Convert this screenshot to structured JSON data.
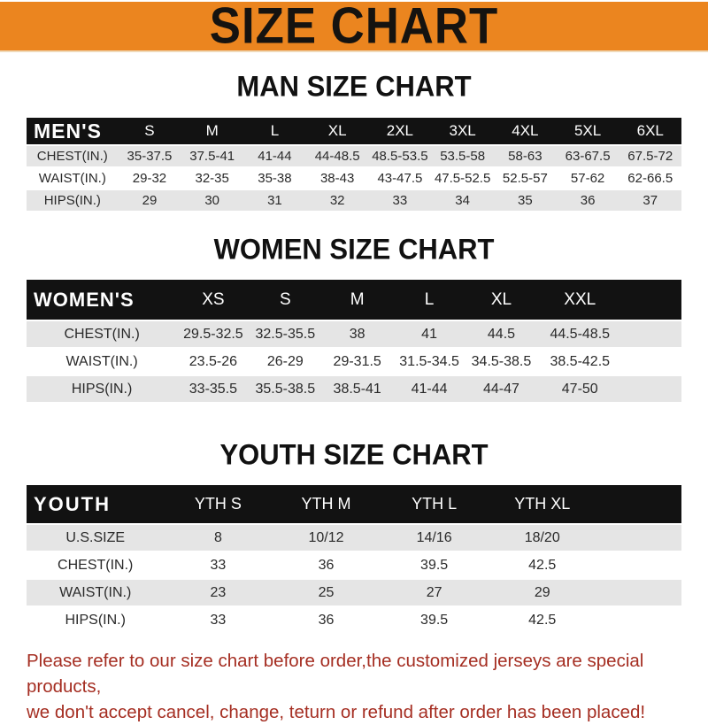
{
  "banner": {
    "title": "SIZE CHART"
  },
  "colors": {
    "banner_bg": "#EB851F",
    "header_bar_bg": "#121212",
    "row_alt_bg": "#E5E5E5",
    "footer_text": "#A52E22"
  },
  "sections": [
    {
      "heading": "MAN SIZE CHART",
      "table": {
        "header": [
          "MEN'S",
          "S",
          "M",
          "L",
          "XL",
          "2XL",
          "3XL",
          "4XL",
          "5XL",
          "6XL"
        ],
        "rows": [
          [
            "CHEST(IN.)",
            "35-37.5",
            "37.5-41",
            "41-44",
            "44-48.5",
            "48.5-53.5",
            "53.5-58",
            "58-63",
            "63-67.5",
            "67.5-72"
          ],
          [
            "WAIST(IN.)",
            "29-32",
            "32-35",
            "35-38",
            "38-43",
            "43-47.5",
            "47.5-52.5",
            "52.5-57",
            "57-62",
            "62-66.5"
          ],
          [
            "HIPS(IN.)",
            "29",
            "30",
            "31",
            "32",
            "33",
            "34",
            "35",
            "36",
            "37"
          ]
        ]
      }
    },
    {
      "heading": "WOMEN SIZE CHART",
      "table": {
        "header": [
          "WOMEN'S",
          "XS",
          "S",
          "M",
          "L",
          "XL",
          "XXL"
        ],
        "rows": [
          [
            "CHEST(IN.)",
            "29.5-32.5",
            "32.5-35.5",
            "38",
            "41",
            "44.5",
            "44.5-48.5"
          ],
          [
            "WAIST(IN.)",
            "23.5-26",
            "26-29",
            "29-31.5",
            "31.5-34.5",
            "34.5-38.5",
            "38.5-42.5"
          ],
          [
            "HIPS(IN.)",
            "33-35.5",
            "35.5-38.5",
            "38.5-41",
            "41-44",
            "44-47",
            "47-50"
          ]
        ]
      }
    },
    {
      "heading": "YOUTH SIZE CHART",
      "table": {
        "header": [
          "YOUTH",
          "YTH S",
          "YTH M",
          "YTH L",
          "YTH XL"
        ],
        "rows": [
          [
            "U.S.SIZE",
            "8",
            "10/12",
            "14/16",
            "18/20"
          ],
          [
            "CHEST(IN.)",
            "33",
            "36",
            "39.5",
            "42.5"
          ],
          [
            "WAIST(IN.)",
            "23",
            "25",
            "27",
            "29"
          ],
          [
            "HIPS(IN.)",
            "33",
            "36",
            "39.5",
            "42.5"
          ]
        ]
      }
    }
  ],
  "footer": {
    "line1": "Please refer to our size chart before order,the customized jerseys are special products,",
    "line2": "we don't accept cancel, change, teturn or refund after order has been placed!"
  }
}
